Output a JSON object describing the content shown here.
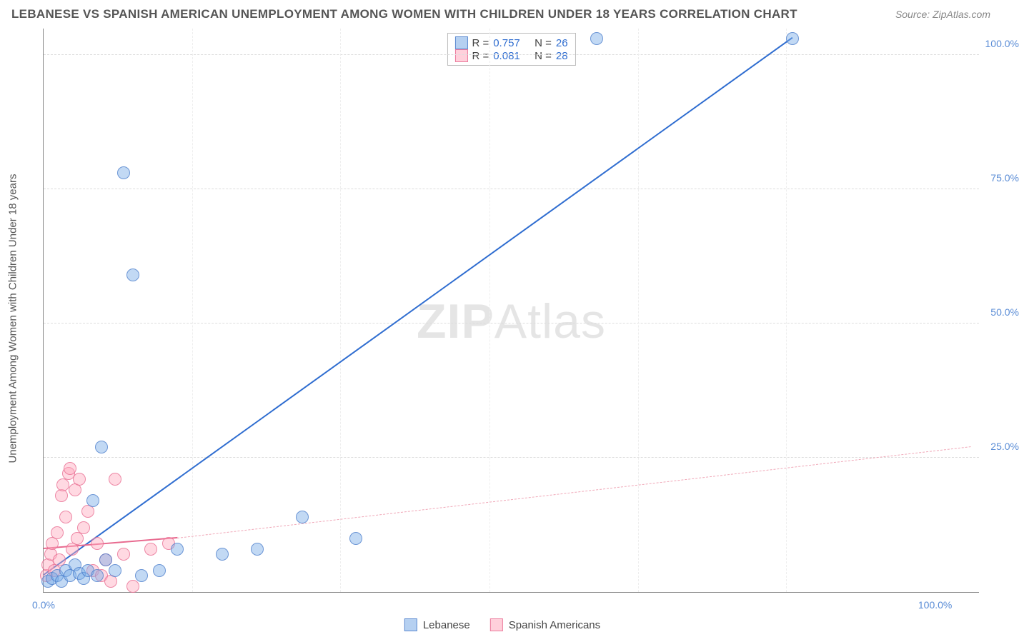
{
  "title": "LEBANESE VS SPANISH AMERICAN UNEMPLOYMENT AMONG WOMEN WITH CHILDREN UNDER 18 YEARS CORRELATION CHART",
  "source": "Source: ZipAtlas.com",
  "ylabel": "Unemployment Among Women with Children Under 18 years",
  "watermark_a": "ZIP",
  "watermark_b": "Atlas",
  "chart": {
    "type": "scatter",
    "xlim": [
      0,
      105
    ],
    "ylim": [
      0,
      105
    ],
    "ytick_vals": [
      25,
      50,
      75,
      100
    ],
    "ytick_labels": [
      "25.0%",
      "50.0%",
      "75.0%",
      "100.0%"
    ],
    "xtick_left": "0.0%",
    "xtick_right": "100.0%",
    "xgrid_vals": [
      16.7,
      33.3,
      50,
      66.7,
      83.3
    ],
    "background_color": "#ffffff",
    "grid_color": "#dddddd",
    "point_radius": 9,
    "series": {
      "lebanese": {
        "label": "Lebanese",
        "color_fill": "rgba(120,170,230,0.45)",
        "color_stroke": "rgba(70,120,200,0.7)",
        "R": "0.757",
        "N": "26",
        "trend": {
          "x1": 0,
          "y1": 3,
          "x2": 84,
          "y2": 103,
          "color": "#2f6dd0",
          "dash": false
        },
        "points": [
          [
            0.5,
            2
          ],
          [
            1,
            2.5
          ],
          [
            1.5,
            3
          ],
          [
            2,
            2
          ],
          [
            2.5,
            4
          ],
          [
            3,
            3
          ],
          [
            3.5,
            5
          ],
          [
            4,
            3.5
          ],
          [
            4.5,
            2.5
          ],
          [
            5,
            4
          ],
          [
            5.5,
            17
          ],
          [
            6,
            3
          ],
          [
            6.5,
            27
          ],
          [
            7,
            6
          ],
          [
            8,
            4
          ],
          [
            9,
            78
          ],
          [
            10,
            59
          ],
          [
            11,
            3
          ],
          [
            13,
            4
          ],
          [
            15,
            8
          ],
          [
            20,
            7
          ],
          [
            24,
            8
          ],
          [
            29,
            14
          ],
          [
            35,
            10
          ],
          [
            62,
            103
          ],
          [
            84,
            103
          ]
        ]
      },
      "spanish": {
        "label": "Spanish Americans",
        "color_fill": "rgba(255,170,190,0.45)",
        "color_stroke": "rgba(230,100,140,0.7)",
        "R": "0.081",
        "N": "28",
        "trend_solid": {
          "x1": 0,
          "y1": 8,
          "x2": 15,
          "y2": 10,
          "color": "#e86a8f"
        },
        "trend_dash": {
          "x1": 15,
          "y1": 10,
          "x2": 104,
          "y2": 27,
          "color": "#f0a8b8"
        },
        "points": [
          [
            0.3,
            3
          ],
          [
            0.5,
            5
          ],
          [
            0.8,
            7
          ],
          [
            1,
            9
          ],
          [
            1.2,
            4
          ],
          [
            1.5,
            11
          ],
          [
            1.8,
            6
          ],
          [
            2,
            18
          ],
          [
            2.2,
            20
          ],
          [
            2.5,
            14
          ],
          [
            2.8,
            22
          ],
          [
            3,
            23
          ],
          [
            3.2,
            8
          ],
          [
            3.5,
            19
          ],
          [
            3.8,
            10
          ],
          [
            4,
            21
          ],
          [
            4.5,
            12
          ],
          [
            5,
            15
          ],
          [
            5.5,
            4
          ],
          [
            6,
            9
          ],
          [
            6.5,
            3
          ],
          [
            7,
            6
          ],
          [
            7.5,
            2
          ],
          [
            8,
            21
          ],
          [
            9,
            7
          ],
          [
            10,
            1
          ],
          [
            12,
            8
          ],
          [
            14,
            9
          ]
        ]
      }
    }
  },
  "legend_top": {
    "r_label": "R =",
    "n_label": "N ="
  }
}
